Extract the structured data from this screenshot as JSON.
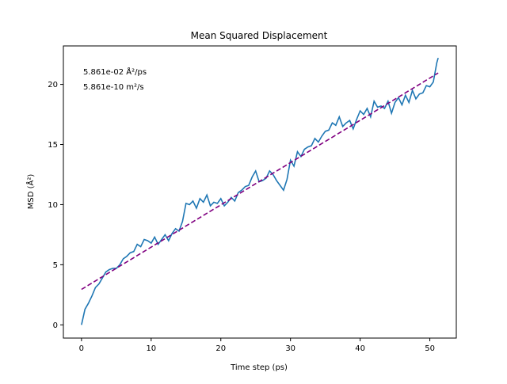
{
  "chart_data": {
    "type": "line",
    "title": "Mean Squared Displacement",
    "xlabel": "Time step (ps)",
    "ylabel": "MSD (Å²)",
    "xlim": [
      -2.6,
      53.8
    ],
    "ylim": [
      -1.1,
      23.2
    ],
    "xticks": [
      0,
      10,
      20,
      30,
      40,
      50
    ],
    "yticks": [
      0,
      5,
      10,
      15,
      20
    ],
    "grid": false,
    "legend": "none",
    "annotations": [
      "5.861e-02 Å²/ps",
      "5.861e-10 m²/s"
    ],
    "series": [
      {
        "color": "#1f77b4",
        "style": "solid",
        "x": [
          0.0,
          0.5,
          1.0,
          1.5,
          2.0,
          2.5,
          3.0,
          3.5,
          4.0,
          4.5,
          5.0,
          5.5,
          6.0,
          6.5,
          7.0,
          7.5,
          8.0,
          8.5,
          9.0,
          9.5,
          10.0,
          10.5,
          11.0,
          11.5,
          12.0,
          12.5,
          13.0,
          13.5,
          14.0,
          14.5,
          15.0,
          15.5,
          16.0,
          16.5,
          17.0,
          17.5,
          18.0,
          18.5,
          19.0,
          19.5,
          20.0,
          20.5,
          21.0,
          21.5,
          22.0,
          22.5,
          23.0,
          23.5,
          24.0,
          24.5,
          25.0,
          25.5,
          26.0,
          26.5,
          27.0,
          27.5,
          28.0,
          28.5,
          29.0,
          29.5,
          30.0,
          30.5,
          31.0,
          31.5,
          32.0,
          32.5,
          33.0,
          33.5,
          34.0,
          34.5,
          35.0,
          35.5,
          36.0,
          36.5,
          37.0,
          37.5,
          38.0,
          38.5,
          39.0,
          39.5,
          40.0,
          40.5,
          41.0,
          41.5,
          42.0,
          42.5,
          43.0,
          43.5,
          44.0,
          44.5,
          45.0,
          45.5,
          46.0,
          46.5,
          47.0,
          47.5,
          48.0,
          48.5,
          49.0,
          49.5,
          50.0,
          50.5,
          51.0,
          51.2
        ],
        "y": [
          0.0,
          1.3,
          1.8,
          2.4,
          3.1,
          3.4,
          3.9,
          4.4,
          4.6,
          4.7,
          4.7,
          5.0,
          5.5,
          5.7,
          6.0,
          6.1,
          6.7,
          6.5,
          7.1,
          7.0,
          6.8,
          7.3,
          6.7,
          7.1,
          7.5,
          7.0,
          7.6,
          8.0,
          7.8,
          8.6,
          10.1,
          10.0,
          10.3,
          9.7,
          10.5,
          10.2,
          10.8,
          9.9,
          10.2,
          10.1,
          10.5,
          9.9,
          10.2,
          10.6,
          10.3,
          11.0,
          11.2,
          11.5,
          11.6,
          12.3,
          12.8,
          11.9,
          12.0,
          12.2,
          12.8,
          12.5,
          12.0,
          11.6,
          11.2,
          12.1,
          13.7,
          13.2,
          14.4,
          14.0,
          14.6,
          14.8,
          14.9,
          15.5,
          15.2,
          15.7,
          16.1,
          16.2,
          16.8,
          16.6,
          17.3,
          16.5,
          16.8,
          17.0,
          16.3,
          17.1,
          17.8,
          17.5,
          18.0,
          17.3,
          18.6,
          18.1,
          18.2,
          18.0,
          18.6,
          17.6,
          18.5,
          18.9,
          18.3,
          19.1,
          18.5,
          19.5,
          18.8,
          19.2,
          19.3,
          19.9,
          19.8,
          20.2,
          21.8,
          22.2
        ]
      },
      {
        "color": "#800080",
        "style": "dashed",
        "x": [
          0.0,
          51.2
        ],
        "y": [
          2.95,
          20.95
        ]
      }
    ]
  }
}
